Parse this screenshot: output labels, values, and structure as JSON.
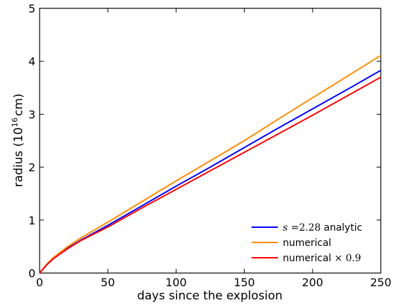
{
  "chart_data": {
    "type": "line",
    "title": "",
    "xlabel": "days since the explosion",
    "ylabel_prefix": "radius (10",
    "ylabel_exp": "16",
    "ylabel_suffix": "cm)",
    "xlim": [
      0,
      250
    ],
    "ylim": [
      0,
      5
    ],
    "xticks": [
      0,
      50,
      100,
      150,
      200,
      250
    ],
    "yticks": [
      0,
      1,
      2,
      3,
      4,
      5
    ],
    "grid": false,
    "legend_position": "lower-right",
    "series": [
      {
        "legend_math": "s",
        "legend_eq": " =2.28",
        "legend_text": " analytic",
        "color": "#0000ff",
        "x": [
          0,
          5,
          10,
          20,
          30,
          50,
          75,
          100,
          125,
          150,
          175,
          200,
          225,
          250
        ],
        "y": [
          0,
          0.15,
          0.27,
          0.46,
          0.62,
          0.9,
          1.27,
          1.64,
          2.0,
          2.37,
          2.74,
          3.1,
          3.46,
          3.83
        ]
      },
      {
        "legend_text": "numerical",
        "color": "#ff8c00",
        "x": [
          0,
          5,
          10,
          20,
          30,
          50,
          75,
          100,
          125,
          150,
          175,
          200,
          225,
          250
        ],
        "y": [
          0,
          0.16,
          0.29,
          0.49,
          0.66,
          0.96,
          1.35,
          1.74,
          2.12,
          2.5,
          2.91,
          3.31,
          3.71,
          4.11
        ]
      },
      {
        "legend_text": "numerical ",
        "legend_times": "× 0.9",
        "color": "#ff0000",
        "x": [
          0,
          5,
          10,
          20,
          30,
          50,
          75,
          100,
          125,
          150,
          175,
          200,
          225,
          250
        ],
        "y": [
          0,
          0.15,
          0.27,
          0.45,
          0.61,
          0.87,
          1.23,
          1.58,
          1.93,
          2.28,
          2.63,
          2.98,
          3.34,
          3.7
        ]
      }
    ]
  }
}
